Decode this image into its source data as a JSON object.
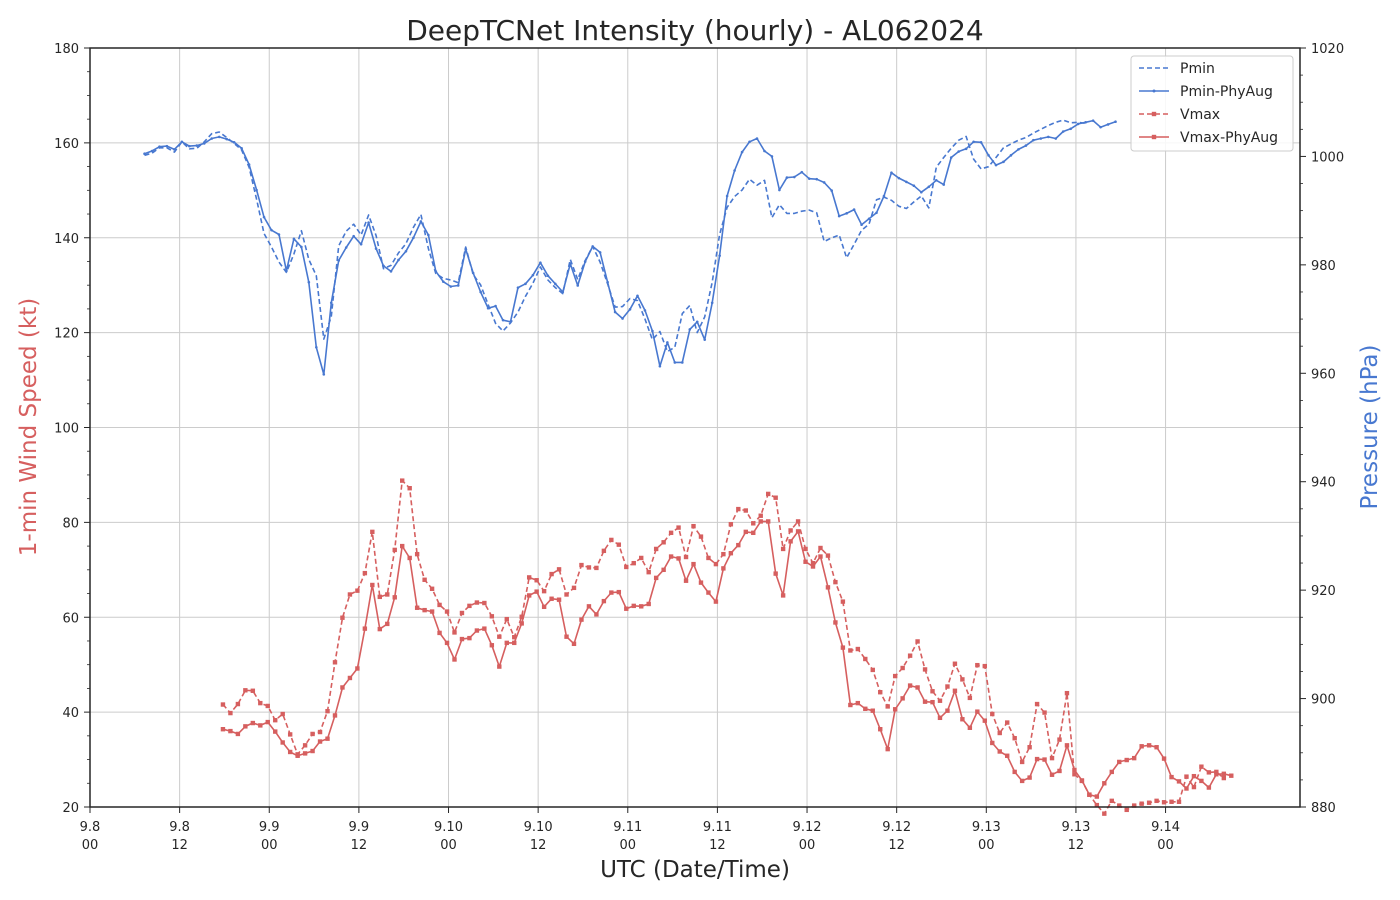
{
  "chart_data": {
    "type": "line",
    "title": "DeepTCNet Intensity (hourly) - AL062024",
    "xlabel": "UTC (Date/Time)",
    "ylabel_left": "1-min Wind Speed (kt)",
    "ylabel_right": "Pressure (hPa)",
    "ylim_left": [
      20,
      180
    ],
    "ylim_right": [
      880,
      1020
    ],
    "xlim_hours": [
      0,
      162
    ],
    "grid": true,
    "legend_position": "top-right",
    "colors": {
      "vmax": "#d65f5f",
      "pmin": "#4878d0"
    },
    "x_ticks": [
      {
        "h": 0,
        "date": "9.8",
        "hour": "00"
      },
      {
        "h": 12,
        "date": "9.8",
        "hour": "12"
      },
      {
        "h": 24,
        "date": "9.9",
        "hour": "00"
      },
      {
        "h": 36,
        "date": "9.9",
        "hour": "12"
      },
      {
        "h": 48,
        "date": "9.10",
        "hour": "00"
      },
      {
        "h": 60,
        "date": "9.10",
        "hour": "12"
      },
      {
        "h": 72,
        "date": "9.11",
        "hour": "00"
      },
      {
        "h": 84,
        "date": "9.11",
        "hour": "12"
      },
      {
        "h": 96,
        "date": "9.12",
        "hour": "00"
      },
      {
        "h": 108,
        "date": "9.12",
        "hour": "12"
      },
      {
        "h": 120,
        "date": "9.13",
        "hour": "00"
      },
      {
        "h": 132,
        "date": "9.13",
        "hour": "12"
      },
      {
        "h": 144,
        "date": "9.14",
        "hour": "00"
      }
    ],
    "y_ticks_left": [
      "20",
      "40",
      "60",
      "80",
      "100",
      "120",
      "140",
      "160",
      "180"
    ],
    "y_ticks_right": [
      "880",
      "900",
      "920",
      "940",
      "960",
      "980",
      "1000",
      "1020"
    ],
    "series": [
      {
        "name": "Pmin",
        "axis": "right",
        "style": "dashed",
        "marker": "none",
        "x_start": 7.3,
        "values": [
          1000.2,
          1000.6,
          1001.6,
          1001.6,
          1000.8,
          1002.7,
          1001.4,
          1001.5,
          1002.7,
          1004.2,
          1004.5,
          1003.5,
          1002.4,
          1001.2,
          998.0,
          992.1,
          985.8,
          983.3,
          980.5,
          978.6,
          982.0,
          986.3,
          981.0,
          978.0,
          966.3,
          970.5,
          983.5,
          986.2,
          987.5,
          985.5,
          989.2,
          985.4,
          979.3,
          979.9,
          982.2,
          983.9,
          986.9,
          989.3,
          983.0,
          978.4,
          977.5,
          977.2,
          976.7,
          983.3,
          978.2,
          976.3,
          972.7,
          969.2,
          967.8,
          969.3,
          971.3,
          974.2,
          976.6,
          979.6,
          977.2,
          975.8,
          974.7,
          981.0,
          977.3,
          980.8,
          983.4,
          980.5,
          976.5,
          972.2,
          972.3,
          973.8,
          973.4,
          970.0,
          966.2,
          967.7,
          964.0,
          964.8,
          971.0,
          972.5,
          967.5,
          970.4,
          976.8,
          985.6,
          990.6,
          992.6,
          993.8,
          995.8,
          994.7,
          995.6,
          988.7,
          991.1,
          989.5,
          989.5,
          989.9,
          990.1,
          989.6,
          984.3,
          985.0,
          985.5,
          981.3,
          983.8,
          986.4,
          987.5,
          992.0,
          992.5,
          991.9,
          990.8,
          990.4,
          991.6,
          992.7,
          990.5,
          998.0,
          999.8,
          1001.5,
          1003.0,
          1003.7,
          999.5,
          997.7,
          998.1,
          999.8,
          1001.6,
          1002.3,
          1003.0,
          1003.5,
          1004.3,
          1005.0,
          1005.7,
          1006.3,
          1006.7,
          1006.2,
          1006.3,
          1006.1
        ]
      },
      {
        "name": "Pmin-PhyAug",
        "axis": "right",
        "style": "solid",
        "marker": "dot",
        "x_start": 7.3,
        "values": [
          1000.5,
          1001.0,
          1001.8,
          1001.9,
          1001.3,
          1002.7,
          1001.9,
          1002.0,
          1002.4,
          1003.3,
          1003.6,
          1003.2,
          1002.6,
          1001.5,
          998.5,
          993.8,
          988.8,
          986.4,
          985.6,
          978.9,
          984.8,
          983.3,
          976.8,
          964.8,
          959.8,
          973.0,
          980.8,
          983.2,
          985.3,
          983.8,
          987.8,
          983.0,
          979.8,
          978.8,
          980.9,
          982.5,
          985.0,
          988.0,
          985.5,
          978.8,
          976.9,
          976.0,
          976.2,
          982.9,
          978.5,
          975.0,
          972.0,
          972.4,
          969.8,
          969.5,
          975.8,
          976.5,
          978.1,
          980.4,
          978.0,
          976.5,
          975.0,
          980.2,
          976.2,
          980.6,
          983.4,
          982.3,
          976.8,
          971.3,
          970.1,
          971.8,
          974.3,
          971.6,
          967.8,
          961.3,
          965.7,
          962.0,
          962.0,
          968.1,
          969.5,
          966.2,
          973.0,
          981.7,
          992.7,
          997.4,
          1000.8,
          1002.7,
          1003.3,
          1001.0,
          1000.0,
          993.8,
          996.1,
          996.2,
          997.1,
          995.9,
          995.8,
          995.2,
          993.7,
          989.0,
          989.5,
          990.2,
          987.4,
          988.5,
          989.6,
          992.7,
          997.0,
          996.0,
          995.3,
          994.6,
          993.4,
          994.4,
          995.6,
          994.8,
          999.8,
          1000.9,
          1001.4,
          1002.7,
          1002.6,
          1000.2,
          998.4,
          999.0,
          1000.2,
          1001.3,
          1002.0,
          1003.0,
          1003.3,
          1003.6,
          1003.3,
          1004.6,
          1005.1,
          1006.0,
          1006.3,
          1006.6,
          1005.4,
          1005.9,
          1006.4
        ]
      },
      {
        "name": "Vmax",
        "axis": "left",
        "style": "dashed",
        "marker": "square",
        "x_start": 17.8,
        "values": [
          41.6,
          39.8,
          41.7,
          44.6,
          44.5,
          41.9,
          41.3,
          38.3,
          39.6,
          35.3,
          31.1,
          33.0,
          35.4,
          35.8,
          40.2,
          50.5,
          59.9,
          64.8,
          65.6,
          69.3,
          78.0,
          64.3,
          64.8,
          74.2,
          88.8,
          87.2,
          73.3,
          67.9,
          66.0,
          62.6,
          61.2,
          56.8,
          60.9,
          62.4,
          63.1,
          63.0,
          60.2,
          55.9,
          59.6,
          55.8,
          60.1,
          68.4,
          67.8,
          65.5,
          69.1,
          70.1,
          64.8,
          66.2,
          71.0,
          70.5,
          70.4,
          74.0,
          76.3,
          75.3,
          70.6,
          71.4,
          72.5,
          69.5,
          74.4,
          75.8,
          77.8,
          78.9,
          72.7,
          79.2,
          77.0,
          72.5,
          71.2,
          73.3,
          79.6,
          82.8,
          82.5,
          79.8,
          81.4,
          86.0,
          85.2,
          74.4,
          78.3,
          80.2,
          74.4,
          71.4,
          74.6,
          73.0,
          67.4,
          63.3,
          53.0,
          53.3,
          51.2,
          48.9,
          44.2,
          41.2,
          47.6,
          49.3,
          51.9,
          54.9,
          49.0,
          44.4,
          42.4,
          45.4,
          50.2,
          46.9,
          43.0,
          49.9,
          49.7,
          39.6,
          35.6,
          37.8,
          34.5,
          29.5,
          32.6,
          41.7,
          39.9,
          30.3,
          34.2,
          44.0,
          26.9,
          25.5,
          22.6,
          20.4,
          18.6,
          21.3,
          20.3,
          19.4,
          20.3,
          20.7,
          20.9,
          21.3,
          21.0,
          21.1,
          21.1,
          26.4,
          24.2,
          28.5,
          27.3,
          27.4,
          26.1
        ]
      },
      {
        "name": "Vmax-PhyAug",
        "axis": "left",
        "style": "solid",
        "marker": "square",
        "x_start": 17.8,
        "values": [
          36.4,
          36.0,
          35.4,
          37.0,
          37.7,
          37.2,
          37.9,
          35.9,
          33.6,
          31.6,
          30.8,
          31.3,
          31.8,
          33.8,
          34.4,
          39.3,
          45.2,
          47.2,
          49.2,
          57.6,
          66.8,
          57.5,
          58.6,
          64.2,
          75.0,
          72.5,
          62.0,
          61.5,
          61.2,
          56.7,
          54.6,
          51.1,
          55.4,
          55.6,
          57.2,
          57.6,
          54.1,
          49.6,
          54.6,
          54.6,
          58.7,
          64.6,
          65.4,
          62.2,
          63.9,
          63.7,
          55.9,
          54.4,
          59.5,
          62.3,
          60.6,
          63.4,
          65.2,
          65.3,
          61.8,
          62.4,
          62.3,
          62.8,
          68.3,
          70.0,
          72.8,
          72.4,
          67.7,
          71.2,
          67.3,
          65.2,
          63.3,
          70.3,
          73.5,
          75.2,
          78.0,
          77.8,
          80.2,
          80.2,
          69.2,
          64.6,
          76.0,
          78.1,
          71.7,
          70.7,
          72.8,
          66.3,
          58.9,
          53.6,
          41.5,
          41.9,
          40.7,
          40.3,
          36.4,
          32.2,
          40.6,
          42.9,
          45.6,
          45.2,
          42.2,
          42.1,
          38.8,
          40.3,
          44.5,
          38.5,
          36.7,
          40.1,
          38.2,
          33.5,
          31.7,
          30.8,
          27.4,
          25.5,
          26.2,
          30.1,
          30.0,
          26.8,
          27.6,
          33.0,
          27.8,
          25.6,
          22.6,
          22.2,
          25.0,
          27.4,
          29.5,
          29.9,
          30.3,
          32.8,
          33.0,
          32.6,
          30.2,
          26.3,
          25.4,
          23.9,
          26.5,
          25.5,
          24.1,
          26.9,
          27.0,
          26.6
        ]
      }
    ]
  }
}
